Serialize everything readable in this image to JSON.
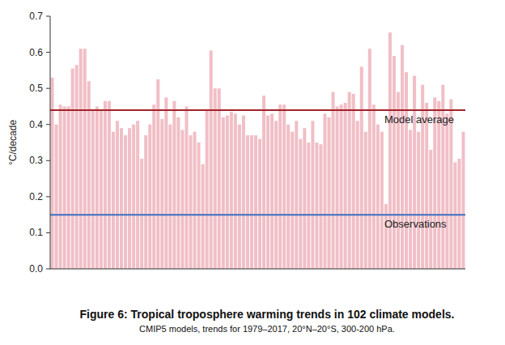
{
  "chart_data": {
    "type": "bar",
    "title": "Figure 6: Tropical troposphere warming trends in 102 climate models.",
    "subtitle": "CMIP5 models, trends for 1979–2017, 20°N–20°S, 300-200 hPa.",
    "y_label": "°C/decade",
    "categories": [
      null,
      null,
      null,
      null,
      null,
      null,
      null,
      null,
      null,
      null,
      null,
      null,
      null,
      null,
      null,
      null,
      null,
      null,
      null,
      null,
      null,
      null,
      null,
      null,
      null,
      null,
      null,
      null,
      null,
      null,
      null,
      null,
      null,
      null,
      null,
      null,
      null,
      null,
      null,
      null,
      null,
      null,
      null,
      null,
      null,
      null,
      null,
      null,
      null,
      null,
      null,
      null,
      null,
      null,
      null,
      null,
      null,
      null,
      null,
      null,
      null,
      null,
      null,
      null,
      null,
      null,
      null,
      null,
      null,
      null,
      null,
      null,
      null,
      null,
      null,
      null,
      null,
      null,
      null,
      null,
      null,
      null,
      null,
      null,
      null,
      null,
      null,
      null,
      null,
      null,
      null,
      null,
      null,
      null,
      null,
      null,
      null,
      null,
      null,
      null,
      null,
      null
    ],
    "values": [
      0.53,
      0.4,
      0.455,
      0.45,
      0.45,
      0.555,
      0.565,
      0.61,
      0.61,
      0.52,
      0.44,
      0.45,
      0.44,
      0.465,
      0.465,
      0.38,
      0.41,
      0.39,
      0.37,
      0.39,
      0.4,
      0.41,
      0.305,
      0.37,
      0.4,
      0.455,
      0.525,
      0.415,
      0.475,
      0.4,
      0.465,
      0.42,
      0.385,
      0.45,
      0.37,
      0.38,
      0.35,
      0.29,
      0.44,
      0.605,
      0.5,
      0.5,
      0.42,
      0.425,
      0.435,
      0.43,
      0.4,
      0.425,
      0.37,
      0.37,
      0.37,
      0.36,
      0.48,
      0.425,
      0.43,
      0.41,
      0.455,
      0.455,
      0.4,
      0.38,
      0.41,
      0.36,
      0.39,
      0.35,
      0.41,
      0.35,
      0.345,
      0.43,
      0.42,
      0.49,
      0.45,
      0.455,
      0.46,
      0.49,
      0.485,
      0.41,
      0.56,
      0.38,
      0.61,
      0.455,
      0.4,
      0.38,
      0.18,
      0.655,
      0.59,
      0.49,
      0.62,
      0.545,
      0.385,
      0.535,
      0.38,
      0.51,
      0.46,
      0.33,
      0.475,
      0.465,
      0.51,
      0.43,
      0.47,
      0.295,
      0.305,
      0.38
    ],
    "color": "#f1bfc6",
    "ylim": [
      0,
      0.7
    ],
    "yticks": [
      {
        "value": 0,
        "label": "0.0"
      },
      0.1,
      0.2,
      0.3,
      0.4,
      0.5,
      0.6,
      0.7
    ],
    "grid": false,
    "lines": [
      {
        "label": "Model average",
        "value": 0.44,
        "color": "#a3232a"
      },
      {
        "label": "Observations",
        "value": 0.15,
        "color": "#3b6fc4"
      }
    ]
  }
}
